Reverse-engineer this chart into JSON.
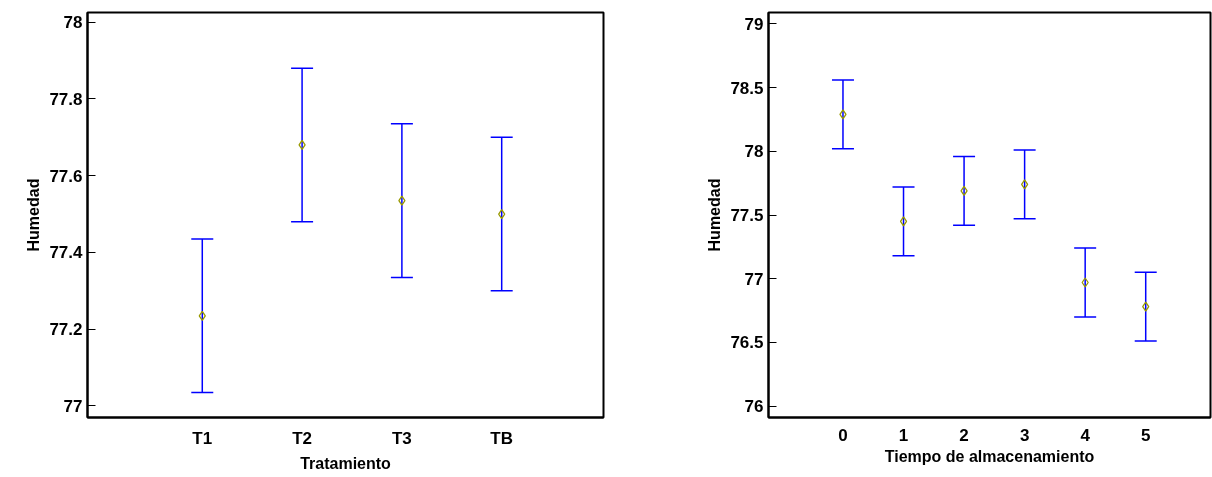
{
  "chart_data": [
    {
      "type": "scatter",
      "xlabel": "Tratamiento",
      "ylabel": "Humedad",
      "categories": [
        "T1",
        "T2",
        "T3",
        "TB"
      ],
      "marker": "diamond",
      "ylim": [
        76.97,
        78.025
      ],
      "yticks": [
        77,
        77.2,
        77.4,
        77.6,
        77.8,
        78
      ],
      "series": [
        {
          "color": "#999900",
          "values": [
            77.235,
            77.68,
            77.535,
            77.5
          ],
          "errors": [
            0.2,
            0.2,
            0.2,
            0.2
          ]
        }
      ]
    },
    {
      "type": "scatter",
      "xlabel": "Tiempo de almacenamiento",
      "ylabel": "Humedad",
      "categories": [
        "0",
        "1",
        "2",
        "3",
        "4",
        "5"
      ],
      "marker": "diamond",
      "ylim": [
        75.91,
        79.09
      ],
      "yticks": [
        76,
        76.5,
        77,
        77.5,
        78,
        78.5,
        79
      ],
      "series": [
        {
          "color": "#999900",
          "values": [
            78.29,
            77.45,
            77.69,
            77.74,
            76.97,
            76.78
          ],
          "errors": [
            0.27,
            0.27,
            0.27,
            0.27,
            0.27,
            0.27
          ]
        }
      ]
    }
  ]
}
